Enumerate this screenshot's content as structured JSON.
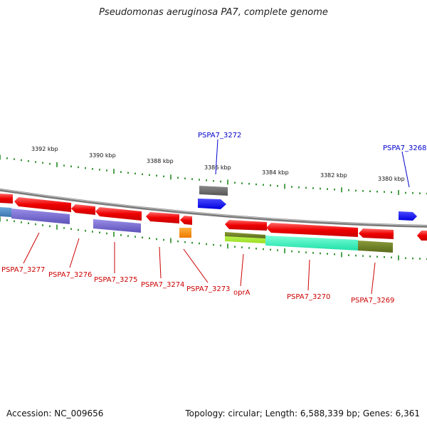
{
  "title": "Pseudomonas aeruginosa PA7, complete genome",
  "footer": {
    "accession": "Accession: NC_009656",
    "summary": "Topology: circular; Length: 6,588,339 bp; Genes: 6,361"
  },
  "colors": {
    "backbone": "#888888",
    "ticks": "#228b22",
    "forward_label": "#0000cc",
    "reverse_label": "#cc0000"
  },
  "ruler": [
    {
      "label": "3392 kbp"
    },
    {
      "label": "3390 kbp"
    },
    {
      "label": "3388 kbp"
    },
    {
      "label": "3386 kbp"
    },
    {
      "label": "3384 kbp"
    },
    {
      "label": "3382 kbp"
    },
    {
      "label": "3380 kbp"
    }
  ],
  "gene_labels": [
    {
      "text": "PSPA7_3272",
      "strand": "forward"
    },
    {
      "text": "PSPA7_3268",
      "strand": "forward"
    },
    {
      "text": "PSPA7_3277",
      "strand": "reverse"
    },
    {
      "text": "PSPA7_3276",
      "strand": "reverse"
    },
    {
      "text": "PSPA7_3275",
      "strand": "reverse"
    },
    {
      "text": "PSPA7_3274",
      "strand": "reverse"
    },
    {
      "text": "PSPA7_3273",
      "strand": "reverse"
    },
    {
      "text": "oprA",
      "strand": "reverse"
    },
    {
      "text": "PSPA7_3270",
      "strand": "reverse"
    },
    {
      "text": "PSPA7_3269",
      "strand": "reverse"
    }
  ]
}
